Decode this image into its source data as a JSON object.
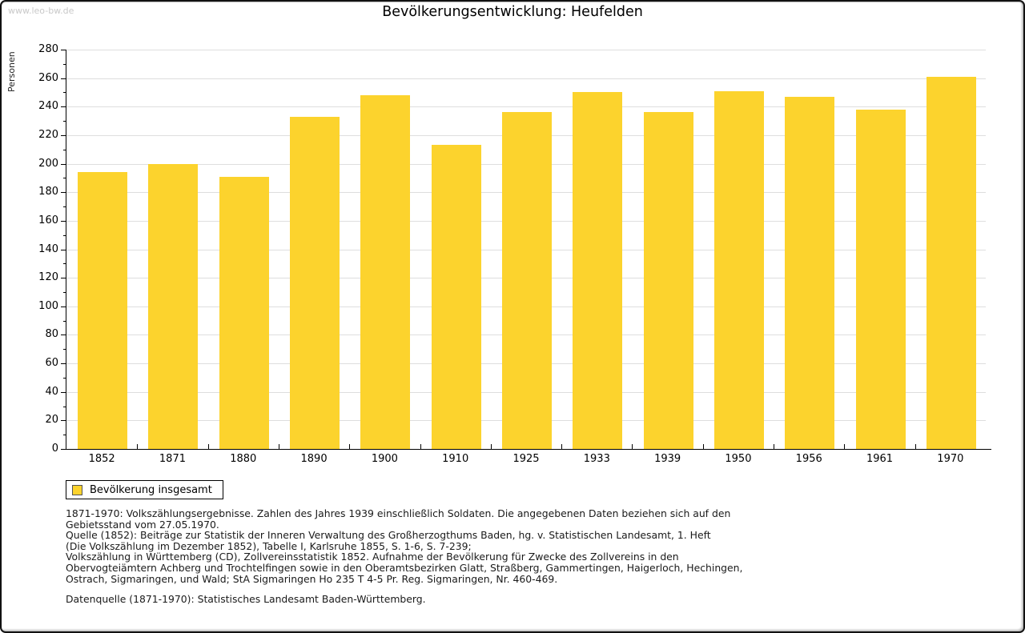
{
  "watermark": "www.leo-bw.de",
  "title": "Bevölkerungsentwicklung: Heufelden",
  "legend": {
    "label": "Bevölkerung insgesamt",
    "swatch_color": "#FCD32D"
  },
  "chart_data": {
    "type": "bar",
    "title": "Bevölkerungsentwicklung: Heufelden",
    "xlabel": "",
    "ylabel": "Personen",
    "categories": [
      "1852",
      "1871",
      "1880",
      "1890",
      "1900",
      "1910",
      "1925",
      "1933",
      "1939",
      "1950",
      "1956",
      "1961",
      "1970"
    ],
    "series": [
      {
        "name": "Bevölkerung insgesamt",
        "values": [
          194,
          200,
          191,
          233,
          248,
          213,
          236,
          250,
          236,
          251,
          247,
          238,
          261
        ]
      }
    ],
    "ylim": [
      0,
      280
    ],
    "ytick_step": 20,
    "yminor_step": 10,
    "grid": "horizontal",
    "legend_position": "bottom-left",
    "bar_color": "#FCD32D",
    "gridline_color": "#dedede"
  },
  "footnote": {
    "lines": [
      "1871-1970: Volkszählungsergebnisse. Zahlen des Jahres 1939 einschließlich Soldaten. Die angegebenen Daten beziehen sich auf den",
      "Gebietsstand vom 27.05.1970.",
      "Quelle (1852): Beiträge zur Statistik der Inneren Verwaltung des Großherzogthums Baden, hg. v. Statistischen Landesamt, 1. Heft",
      "(Die Volkszählung im Dezember 1852), Tabelle I, Karlsruhe 1855, S. 1-6, S. 7-239;",
      "Volkszählung in Württemberg (CD), Zollvereinsstatistik 1852. Aufnahme der Bevölkerung für Zwecke des Zollvereins in den",
      "Obervogteiämtern Achberg und Trochtelfingen sowie in den Oberamtsbezirken Glatt, Straßberg, Gammertingen, Haigerloch, Hechingen,",
      "Ostrach, Sigmaringen, und Wald; StA Sigmaringen Ho 235 T 4-5 Pr. Reg. Sigmaringen, Nr. 460-469."
    ]
  },
  "data_source": "Datenquelle (1871-1970): Statistisches Landesamt Baden-Württemberg."
}
